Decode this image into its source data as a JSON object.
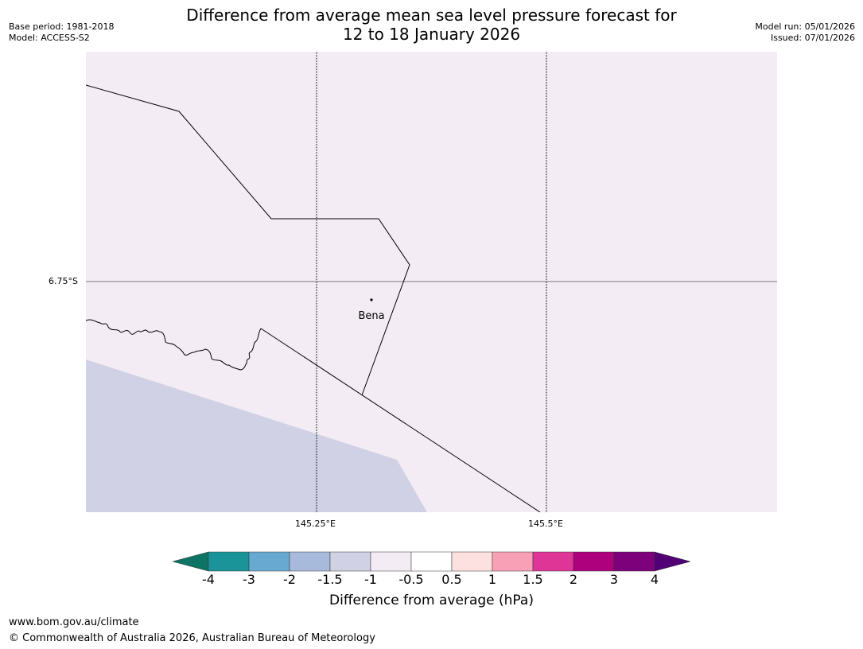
{
  "title": {
    "line1": "Difference from average mean sea level pressure forecast for",
    "line2": "12 to 18 January 2026"
  },
  "header_left": {
    "base_period": "Base period: 1981-2018",
    "model": "Model: ACCESS-S2"
  },
  "header_right": {
    "model_run": "Model run: 05/01/2026",
    "issued": "Issued: 07/01/2026"
  },
  "map": {
    "lat_label": "6.75°S",
    "lon_labels": [
      "145.25°E",
      "145.5°E"
    ],
    "place_name": "Bena",
    "colors": {
      "background": "#f4ecf5",
      "negative_region": "#d1d1e5",
      "boundary": "#000000"
    }
  },
  "colorbar": {
    "title": "Difference from average (hPa)",
    "tick_labels": [
      "-4",
      "-3",
      "-2",
      "-1.5",
      "-1",
      "-0.5",
      "0.5",
      "1",
      "1.5",
      "2",
      "3",
      "4"
    ],
    "colors": [
      "#0e7465",
      "#1b9499",
      "#68a9d1",
      "#a7badc",
      "#d1d1e5",
      "#f4ecf5",
      "#ffffff",
      "#fde0e0",
      "#f8a0b6",
      "#de3596",
      "#ad017e",
      "#7d017b",
      "#510076"
    ]
  },
  "footer": {
    "url": "www.bom.gov.au/climate",
    "copyright": "© Commonwealth of Australia 2026, Australian Bureau of Meteorology"
  }
}
